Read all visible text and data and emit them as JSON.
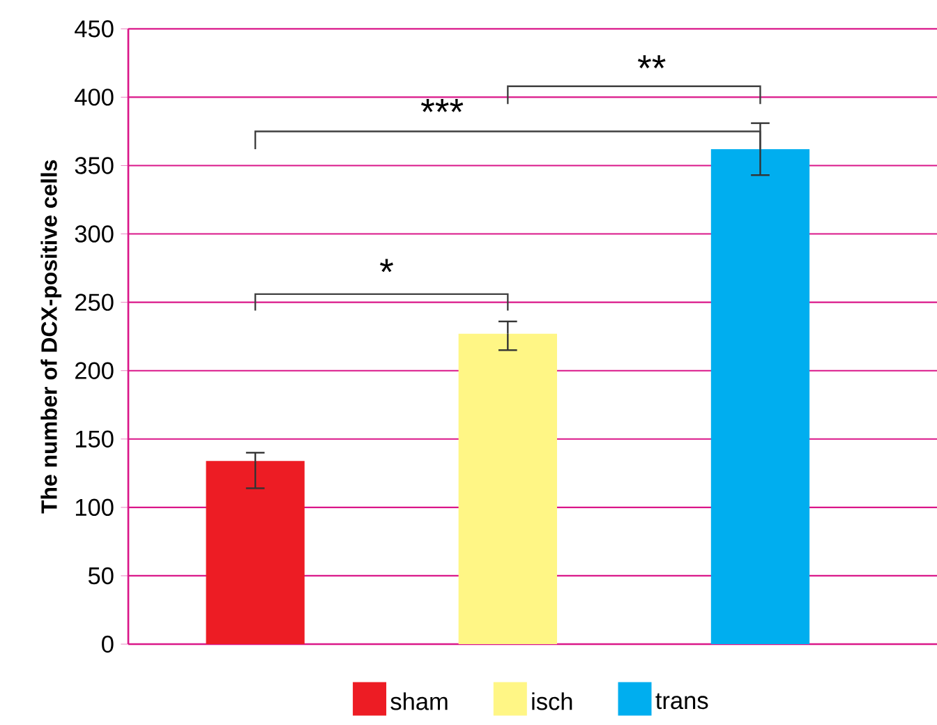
{
  "chart_data": {
    "type": "bar",
    "ylabel": "The number of DCX-positive cells",
    "categories": [
      null,
      null,
      null
    ],
    "series": [
      {
        "name": "sham",
        "color": "#ed1c24",
        "values": [
          134,
          null,
          null
        ],
        "errors": [
          [
            114,
            140
          ],
          null,
          null
        ]
      },
      {
        "name": "isch",
        "color": "#fff685",
        "values": [
          null,
          227,
          null
        ],
        "errors": [
          null,
          [
            215,
            236
          ],
          null
        ]
      },
      {
        "name": "trans",
        "color": "#00aeef",
        "values": [
          null,
          null,
          362
        ],
        "errors": [
          null,
          null,
          [
            343,
            381
          ]
        ]
      }
    ],
    "ylim": [
      0,
      450
    ],
    "yticks": [
      0,
      50,
      100,
      150,
      200,
      250,
      300,
      350,
      400,
      450
    ],
    "grid": "y",
    "legend": "bottom",
    "annotations": [
      "*",
      "***",
      "**"
    ]
  }
}
